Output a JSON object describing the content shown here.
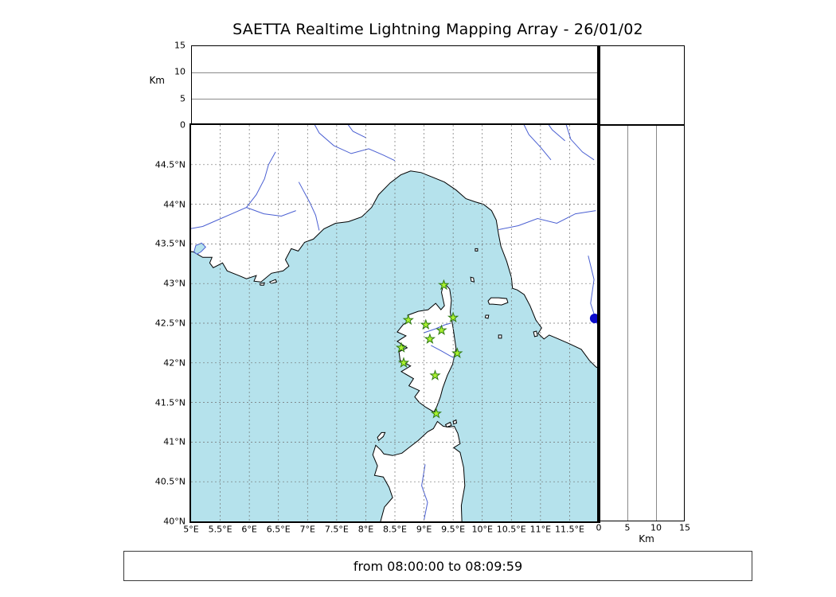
{
  "title": "SAETTA Realtime Lightning Mapping Array - 26/01/02",
  "status_bar": "from 08:00:00 to 08:09:59",
  "colors": {
    "sea": "#b5e2ec",
    "land": "#ffffff",
    "coast": "#000000",
    "river": "#4a5fd2",
    "grid": "#707070",
    "station_fill": "#aaf22f",
    "station_stroke": "#2f7a12",
    "dot": "#0b0bcc"
  },
  "alt_axis": {
    "label": "Km",
    "max": 15,
    "ticks": [
      {
        "v": 0,
        "label": "0"
      },
      {
        "v": 5,
        "label": "5"
      },
      {
        "v": 10,
        "label": "10"
      },
      {
        "v": 15,
        "label": "15"
      }
    ],
    "gridlines": [
      5,
      10
    ]
  },
  "map": {
    "lon_min": 5,
    "lon_max": 12,
    "lat_min": 40,
    "lat_max": 45,
    "grid_step": 0.5,
    "lat_ticks": [
      {
        "v": 40,
        "label": "40°N"
      },
      {
        "v": 40.5,
        "label": "40.5°N"
      },
      {
        "v": 41,
        "label": "41°N"
      },
      {
        "v": 41.5,
        "label": "41.5°N"
      },
      {
        "v": 42,
        "label": "42°N"
      },
      {
        "v": 42.5,
        "label": "42.5°N"
      },
      {
        "v": 43,
        "label": "43°N"
      },
      {
        "v": 43.5,
        "label": "43.5°N"
      },
      {
        "v": 44,
        "label": "44°N"
      },
      {
        "v": 44.5,
        "label": "44.5°N"
      }
    ],
    "lon_ticks": [
      {
        "v": 5,
        "label": "5°E"
      },
      {
        "v": 5.5,
        "label": "5.5°E"
      },
      {
        "v": 6,
        "label": "6°E"
      },
      {
        "v": 6.5,
        "label": "6.5°E"
      },
      {
        "v": 7,
        "label": "7°E"
      },
      {
        "v": 7.5,
        "label": "7.5°E"
      },
      {
        "v": 8,
        "label": "8°E"
      },
      {
        "v": 8.5,
        "label": "8.5°E"
      },
      {
        "v": 9,
        "label": "9°E"
      },
      {
        "v": 9.5,
        "label": "9.5°E"
      },
      {
        "v": 10,
        "label": "10°E"
      },
      {
        "v": 10.5,
        "label": "10.5°E"
      },
      {
        "v": 11,
        "label": "11°E"
      },
      {
        "v": 11.5,
        "label": "11.5°E"
      }
    ],
    "land": [
      [
        [
          4.8,
          45.2
        ],
        [
          12.2,
          45.2
        ],
        [
          12.2,
          41.85
        ],
        [
          11.95,
          41.95
        ],
        [
          11.84,
          42.03
        ],
        [
          11.7,
          42.17
        ],
        [
          11.5,
          42.24
        ],
        [
          11.28,
          42.31
        ],
        [
          11.15,
          42.35
        ],
        [
          11.06,
          42.3
        ],
        [
          10.96,
          42.37
        ],
        [
          11.02,
          42.44
        ],
        [
          10.92,
          42.54
        ],
        [
          10.82,
          42.72
        ],
        [
          10.72,
          42.86
        ],
        [
          10.6,
          42.92
        ],
        [
          10.52,
          42.94
        ],
        [
          10.5,
          43.08
        ],
        [
          10.42,
          43.28
        ],
        [
          10.32,
          43.47
        ],
        [
          10.28,
          43.62
        ],
        [
          10.24,
          43.8
        ],
        [
          10.16,
          43.92
        ],
        [
          10.02,
          44.0
        ],
        [
          9.88,
          44.03
        ],
        [
          9.72,
          44.07
        ],
        [
          9.55,
          44.18
        ],
        [
          9.35,
          44.28
        ],
        [
          9.15,
          44.34
        ],
        [
          8.95,
          44.4
        ],
        [
          8.77,
          44.42
        ],
        [
          8.6,
          44.37
        ],
        [
          8.42,
          44.27
        ],
        [
          8.22,
          44.12
        ],
        [
          8.1,
          43.96
        ],
        [
          7.93,
          43.84
        ],
        [
          7.7,
          43.78
        ],
        [
          7.48,
          43.76
        ],
        [
          7.28,
          43.69
        ],
        [
          7.1,
          43.56
        ],
        [
          6.95,
          43.52
        ],
        [
          6.84,
          43.41
        ],
        [
          6.72,
          43.44
        ],
        [
          6.62,
          43.3
        ],
        [
          6.68,
          43.22
        ],
        [
          6.58,
          43.16
        ],
        [
          6.38,
          43.13
        ],
        [
          6.2,
          43.02
        ],
        [
          6.08,
          43.03
        ],
        [
          6.12,
          43.1
        ],
        [
          5.95,
          43.06
        ],
        [
          5.82,
          43.1
        ],
        [
          5.62,
          43.16
        ],
        [
          5.54,
          43.26
        ],
        [
          5.38,
          43.2
        ],
        [
          5.32,
          43.26
        ],
        [
          5.36,
          43.33
        ],
        [
          5.2,
          43.33
        ],
        [
          5.04,
          43.4
        ],
        [
          4.8,
          43.42
        ]
      ],
      [
        [
          9.34,
          43.01
        ],
        [
          9.44,
          42.93
        ],
        [
          9.47,
          42.79
        ],
        [
          9.45,
          42.64
        ],
        [
          9.5,
          42.44
        ],
        [
          9.55,
          42.18
        ],
        [
          9.49,
          41.98
        ],
        [
          9.4,
          41.84
        ],
        [
          9.32,
          41.68
        ],
        [
          9.28,
          41.57
        ],
        [
          9.22,
          41.45
        ],
        [
          9.17,
          41.38
        ],
        [
          9.03,
          41.44
        ],
        [
          8.92,
          41.5
        ],
        [
          8.84,
          41.57
        ],
        [
          8.92,
          41.65
        ],
        [
          8.74,
          41.71
        ],
        [
          8.82,
          41.8
        ],
        [
          8.61,
          41.89
        ],
        [
          8.77,
          41.96
        ],
        [
          8.59,
          42.03
        ],
        [
          8.57,
          42.14
        ],
        [
          8.71,
          42.19
        ],
        [
          8.54,
          42.27
        ],
        [
          8.69,
          42.34
        ],
        [
          8.54,
          42.39
        ],
        [
          8.64,
          42.48
        ],
        [
          8.74,
          42.53
        ],
        [
          8.72,
          42.6
        ],
        [
          8.9,
          42.65
        ],
        [
          9.07,
          42.67
        ],
        [
          9.2,
          42.75
        ],
        [
          9.29,
          42.67
        ],
        [
          9.35,
          42.72
        ],
        [
          9.3,
          42.89
        ]
      ],
      [
        [
          8.18,
          39.8
        ],
        [
          8.32,
          40.18
        ],
        [
          8.46,
          40.3
        ],
        [
          8.4,
          40.43
        ],
        [
          8.3,
          40.56
        ],
        [
          8.15,
          40.58
        ],
        [
          8.2,
          40.7
        ],
        [
          8.12,
          40.84
        ],
        [
          8.17,
          40.96
        ],
        [
          8.26,
          40.9
        ],
        [
          8.31,
          40.85
        ],
        [
          8.46,
          40.83
        ],
        [
          8.62,
          40.86
        ],
        [
          8.74,
          40.93
        ],
        [
          8.9,
          41.02
        ],
        [
          9.06,
          41.13
        ],
        [
          9.16,
          41.17
        ],
        [
          9.23,
          41.26
        ],
        [
          9.33,
          41.2
        ],
        [
          9.43,
          41.19
        ],
        [
          9.52,
          41.2
        ],
        [
          9.58,
          41.11
        ],
        [
          9.62,
          40.98
        ],
        [
          9.51,
          40.93
        ],
        [
          9.62,
          40.87
        ],
        [
          9.68,
          40.68
        ],
        [
          9.7,
          40.45
        ],
        [
          9.64,
          40.2
        ],
        [
          9.66,
          39.8
        ]
      ],
      [
        [
          8.22,
          41.02
        ],
        [
          8.3,
          41.07
        ],
        [
          8.33,
          41.12
        ],
        [
          8.27,
          41.12
        ],
        [
          8.2,
          41.06
        ]
      ],
      [
        [
          9.37,
          41.22
        ],
        [
          9.45,
          41.25
        ],
        [
          9.47,
          41.21
        ],
        [
          9.39,
          41.19
        ]
      ],
      [
        [
          9.5,
          41.26
        ],
        [
          9.55,
          41.28
        ],
        [
          9.56,
          41.24
        ],
        [
          9.51,
          41.23
        ]
      ],
      [
        [
          10.1,
          42.78
        ],
        [
          10.15,
          42.82
        ],
        [
          10.28,
          42.82
        ],
        [
          10.42,
          42.81
        ],
        [
          10.44,
          42.76
        ],
        [
          10.33,
          42.73
        ],
        [
          10.18,
          42.74
        ],
        [
          10.12,
          42.74
        ]
      ],
      [
        [
          9.8,
          43.08
        ],
        [
          9.85,
          43.07
        ],
        [
          9.86,
          43.02
        ],
        [
          9.81,
          43.03
        ]
      ],
      [
        [
          9.88,
          43.44
        ],
        [
          9.92,
          43.44
        ],
        [
          9.92,
          43.41
        ],
        [
          9.88,
          43.41
        ]
      ],
      [
        [
          10.06,
          42.6
        ],
        [
          10.11,
          42.6
        ],
        [
          10.1,
          42.56
        ],
        [
          10.05,
          42.57
        ]
      ],
      [
        [
          10.28,
          42.35
        ],
        [
          10.33,
          42.35
        ],
        [
          10.33,
          42.31
        ],
        [
          10.28,
          42.31
        ]
      ],
      [
        [
          10.88,
          42.39
        ],
        [
          10.93,
          42.4
        ],
        [
          10.95,
          42.34
        ],
        [
          10.9,
          42.33
        ]
      ],
      [
        [
          6.18,
          43.0
        ],
        [
          6.26,
          43.01
        ],
        [
          6.25,
          42.98
        ],
        [
          6.19,
          42.98
        ]
      ],
      [
        [
          6.35,
          43.02
        ],
        [
          6.45,
          43.05
        ],
        [
          6.47,
          43.02
        ],
        [
          6.38,
          43.0
        ]
      ]
    ],
    "lagoons": [
      [
        [
          5.05,
          43.4
        ],
        [
          5.08,
          43.48
        ],
        [
          5.18,
          43.51
        ],
        [
          5.25,
          43.46
        ],
        [
          5.17,
          43.4
        ],
        [
          5.1,
          43.37
        ]
      ]
    ],
    "rivers": [
      [
        [
          4.9,
          43.68
        ],
        [
          5.2,
          43.72
        ],
        [
          5.45,
          43.8
        ],
        [
          5.7,
          43.88
        ],
        [
          5.95,
          43.96
        ],
        [
          6.12,
          44.12
        ],
        [
          6.26,
          44.32
        ],
        [
          6.33,
          44.5
        ],
        [
          6.45,
          44.66
        ]
      ],
      [
        [
          5.95,
          43.96
        ],
        [
          6.25,
          43.88
        ],
        [
          6.55,
          43.85
        ],
        [
          6.8,
          43.92
        ]
      ],
      [
        [
          7.2,
          43.67
        ],
        [
          7.14,
          43.86
        ],
        [
          7.04,
          44.02
        ],
        [
          6.93,
          44.17
        ],
        [
          6.85,
          44.28
        ]
      ],
      [
        [
          7.05,
          45.1
        ],
        [
          7.2,
          44.9
        ],
        [
          7.45,
          44.74
        ],
        [
          7.75,
          44.64
        ],
        [
          8.05,
          44.7
        ],
        [
          8.3,
          44.62
        ],
        [
          8.5,
          44.55
        ]
      ],
      [
        [
          7.6,
          45.1
        ],
        [
          7.78,
          44.92
        ],
        [
          8.0,
          44.84
        ]
      ],
      [
        [
          10.65,
          45.1
        ],
        [
          10.8,
          44.88
        ],
        [
          11.0,
          44.72
        ],
        [
          11.18,
          44.56
        ]
      ],
      [
        [
          11.4,
          45.1
        ],
        [
          11.52,
          44.82
        ],
        [
          11.72,
          44.66
        ],
        [
          11.92,
          44.56
        ]
      ],
      [
        [
          11.05,
          45.1
        ],
        [
          11.2,
          44.94
        ],
        [
          11.42,
          44.8
        ]
      ],
      [
        [
          10.28,
          43.68
        ],
        [
          10.62,
          43.73
        ],
        [
          10.95,
          43.82
        ],
        [
          11.28,
          43.76
        ],
        [
          11.6,
          43.88
        ],
        [
          11.95,
          43.92
        ]
      ],
      [
        [
          11.82,
          43.35
        ],
        [
          11.92,
          43.05
        ],
        [
          11.86,
          42.75
        ],
        [
          11.98,
          42.48
        ]
      ],
      [
        [
          9.0,
          42.38
        ],
        [
          9.2,
          42.43
        ],
        [
          9.36,
          42.48
        ],
        [
          9.46,
          42.5
        ]
      ],
      [
        [
          9.12,
          42.22
        ],
        [
          9.3,
          42.15
        ],
        [
          9.44,
          42.09
        ],
        [
          9.52,
          42.06
        ]
      ],
      [
        [
          9.02,
          40.72
        ],
        [
          8.96,
          40.45
        ],
        [
          9.06,
          40.24
        ],
        [
          9.0,
          40.02
        ]
      ]
    ],
    "stations": [
      [
        9.34,
        42.98
      ],
      [
        8.73,
        42.54
      ],
      [
        9.5,
        42.57
      ],
      [
        9.03,
        42.48
      ],
      [
        9.3,
        42.41
      ],
      [
        9.1,
        42.3
      ],
      [
        8.61,
        42.19
      ],
      [
        9.57,
        42.12
      ],
      [
        8.65,
        42.0
      ],
      [
        9.19,
        41.84
      ],
      [
        9.21,
        41.36
      ]
    ],
    "dot": {
      "lon": 11.93,
      "lat": 42.56
    }
  }
}
